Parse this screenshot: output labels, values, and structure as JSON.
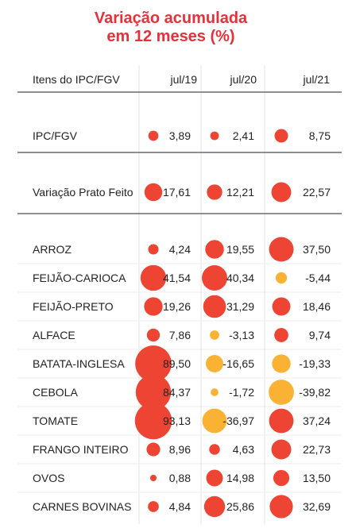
{
  "title": {
    "line1": "Variação acumulada",
    "line2": "em 12 meses (%)"
  },
  "header": {
    "items_label": "Itens do IPC/FGV",
    "columns": [
      "jul/19",
      "jul/20",
      "jul/21"
    ]
  },
  "colors": {
    "title": "#e8303a",
    "positive": "#ee4433",
    "negative": "#f9b233",
    "divider": "#222222",
    "column_rule": "#e3e3e3"
  },
  "chart_data": {
    "type": "table",
    "title": "Variação acumulada em 12 meses (%)",
    "columns": [
      "jul/19",
      "jul/20",
      "jul/21"
    ],
    "rows": [
      {
        "label": "IPC/FGV",
        "values": [
          3.89,
          2.41,
          8.75
        ],
        "display": [
          "3,89",
          "2,41",
          "8,75"
        ]
      },
      {
        "label": "Variação Prato Feito",
        "values": [
          17.61,
          12.21,
          22.57
        ],
        "display": [
          "17,61",
          "12,21",
          "22,57"
        ]
      },
      {
        "label": "ARROZ",
        "values": [
          4.24,
          19.55,
          37.5
        ],
        "display": [
          "4,24",
          "19,55",
          "37,50"
        ]
      },
      {
        "label": "FEIJÃO-CARIOCA",
        "values": [
          41.54,
          40.34,
          -5.44
        ],
        "display": [
          "41,54",
          "40,34",
          "-5,44"
        ]
      },
      {
        "label": "FEIJÃO-PRETO",
        "values": [
          19.26,
          31.29,
          18.46
        ],
        "display": [
          "19,26",
          "31,29",
          "18,46"
        ]
      },
      {
        "label": "ALFACE",
        "values": [
          7.86,
          -3.13,
          9.74
        ],
        "display": [
          "7,86",
          "-3,13",
          "9,74"
        ]
      },
      {
        "label": "BATATA-INGLESA",
        "values": [
          89.5,
          -16.65,
          -19.33
        ],
        "display": [
          "89,50",
          "-16,65",
          "-19,33"
        ]
      },
      {
        "label": "CEBOLA",
        "values": [
          84.37,
          -1.72,
          -39.82
        ],
        "display": [
          "84,37",
          "-1,72",
          "-39,82"
        ]
      },
      {
        "label": "TOMATE",
        "values": [
          93.13,
          -36.97,
          37.24
        ],
        "display": [
          "93,13",
          "-36,97",
          "37,24"
        ]
      },
      {
        "label": "FRANGO INTEIRO",
        "values": [
          8.96,
          4.63,
          22.73
        ],
        "display": [
          "8,96",
          "4,63",
          "22,73"
        ]
      },
      {
        "label": "OVOS",
        "values": [
          0.88,
          14.98,
          13.5
        ],
        "display": [
          "0,88",
          "14,98",
          "13,50"
        ]
      },
      {
        "label": "CARNES BOVINAS",
        "values": [
          4.84,
          25.86,
          32.69
        ],
        "display": [
          "4,84",
          "25,86",
          "32,69"
        ]
      }
    ]
  }
}
